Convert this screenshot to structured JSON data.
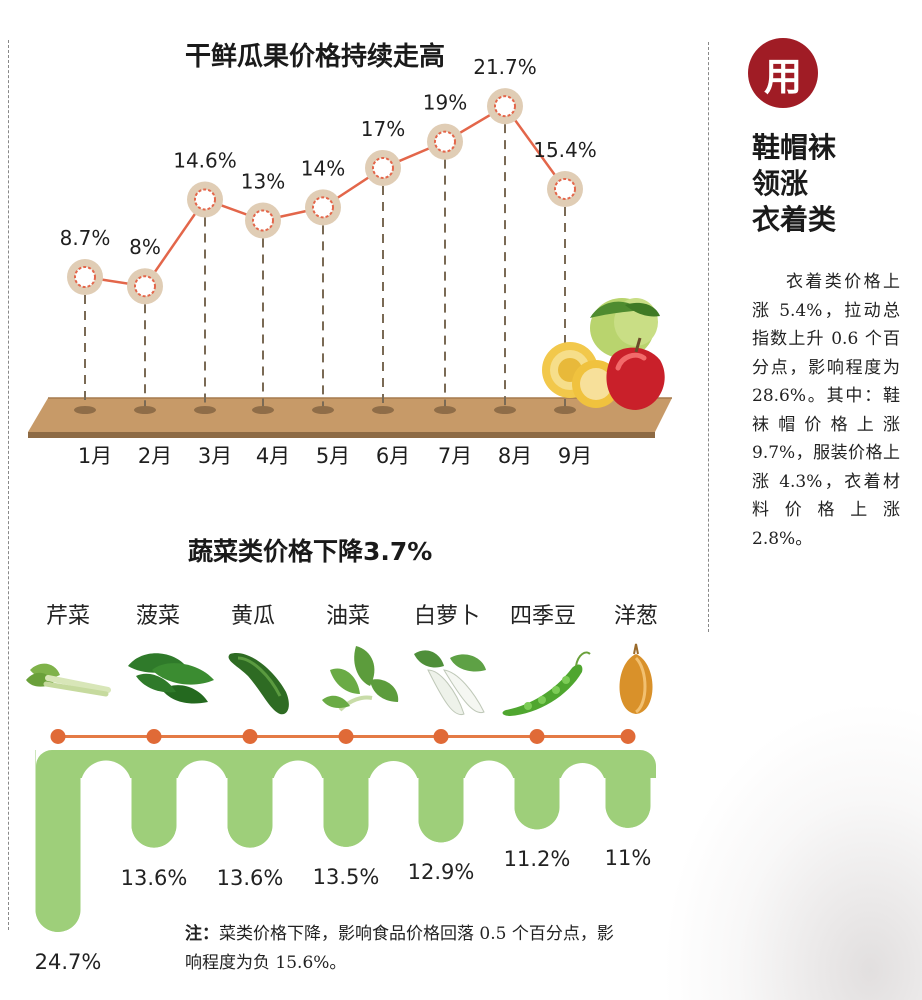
{
  "chart_data": [
    {
      "type": "line",
      "title": "干鲜瓜果价格持续走高",
      "categories": [
        "1月",
        "2月",
        "3月",
        "4月",
        "5月",
        "6月",
        "7月",
        "8月",
        "9月"
      ],
      "values": [
        8.7,
        8,
        14.6,
        13,
        14,
        17,
        19,
        21.7,
        15.4
      ],
      "labels": [
        "8.7%",
        "8%",
        "14.6%",
        "13%",
        "14%",
        "17%",
        "19%",
        "21.7%",
        "15.4%"
      ],
      "unit": "%",
      "ylim": [
        5,
        25
      ],
      "colors": {
        "line": "#e3664a",
        "marker_ring": "#e0cdb5",
        "marker_fill": "#ffffff",
        "shelf": "#b88a5a"
      }
    },
    {
      "type": "bar",
      "orientation": "down",
      "title": "蔬菜类价格下降3.7%",
      "categories": [
        "芹菜",
        "菠菜",
        "黄瓜",
        "油菜",
        "白萝卜",
        "四季豆",
        "洋葱"
      ],
      "values": [
        24.7,
        13.6,
        13.6,
        13.5,
        12.9,
        11.2,
        11
      ],
      "labels": [
        "24.7%",
        "13.6%",
        "13.6%",
        "13.5%",
        "12.9%",
        "11.2%",
        "11%"
      ],
      "unit": "%",
      "colors": {
        "bar": "#9ecf7a",
        "connector": "#e47a45"
      }
    }
  ],
  "side": {
    "badge": "用",
    "headline": [
      "鞋帽袜",
      "领涨",
      "衣着类"
    ],
    "body": "衣着类价格上涨 5.4%，拉动总指数上升 0.6 个百分点，影响程度为 28.6%。其中：鞋袜帽价格上涨 9.7%，服装价格上涨 4.3%，衣着材料价格上涨 2.8%。"
  },
  "note": {
    "label": "注：",
    "text": "菜类价格下降，影响食品价格回落 0.5 个百分点，影响程度为负 15.6%。"
  }
}
